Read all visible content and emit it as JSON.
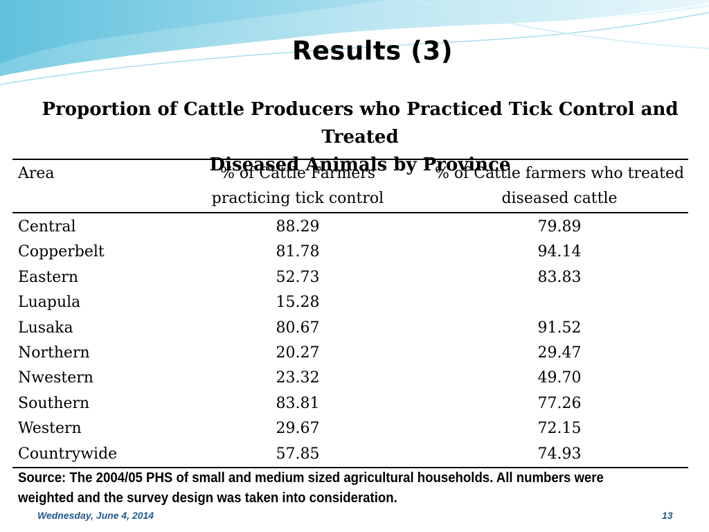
{
  "slide": {
    "title": "Results (3)",
    "subtitle_line1": "Proportion of Cattle Producers who Practiced Tick Control and Treated",
    "subtitle_line2": "Diseased Animals by Province"
  },
  "table": {
    "headers": {
      "area": "Area",
      "col1_line1": "% of Cattle Farmers",
      "col1_line2": "practicing tick control",
      "col2_line1": "% of Cattle farmers who treated",
      "col2_line2": "diseased cattle"
    },
    "rows": [
      {
        "area": "Central",
        "tick": "88.29",
        "treated": "79.89"
      },
      {
        "area": "Copperbelt",
        "tick": "81.78",
        "treated": "94.14"
      },
      {
        "area": "Eastern",
        "tick": "52.73",
        "treated": "83.83"
      },
      {
        "area": "Luapula",
        "tick": "15.28",
        "treated": ""
      },
      {
        "area": "Lusaka",
        "tick": "80.67",
        "treated": "91.52"
      },
      {
        "area": "Northern",
        "tick": "20.27",
        "treated": "29.47"
      },
      {
        "area": "Nwestern",
        "tick": "23.32",
        "treated": "49.70"
      },
      {
        "area": "Southern",
        "tick": "83.81",
        "treated": "77.26"
      },
      {
        "area": "Western",
        "tick": "29.67",
        "treated": "72.15"
      },
      {
        "area": "Countrywide",
        "tick": "57.85",
        "treated": "74.93"
      }
    ]
  },
  "source_line1": "Source: The 2004/05 PHS of small and medium sized agricultural households. All numbers were",
  "source_line2": "weighted and the survey design was taken into consideration.",
  "footer": {
    "date": "Wednesday, June 4, 2014",
    "page": "13"
  },
  "colors": {
    "wave_light": "#d9f1f7",
    "wave_mid": "#8fd3e6",
    "footer_text": "#1f5a8c"
  }
}
